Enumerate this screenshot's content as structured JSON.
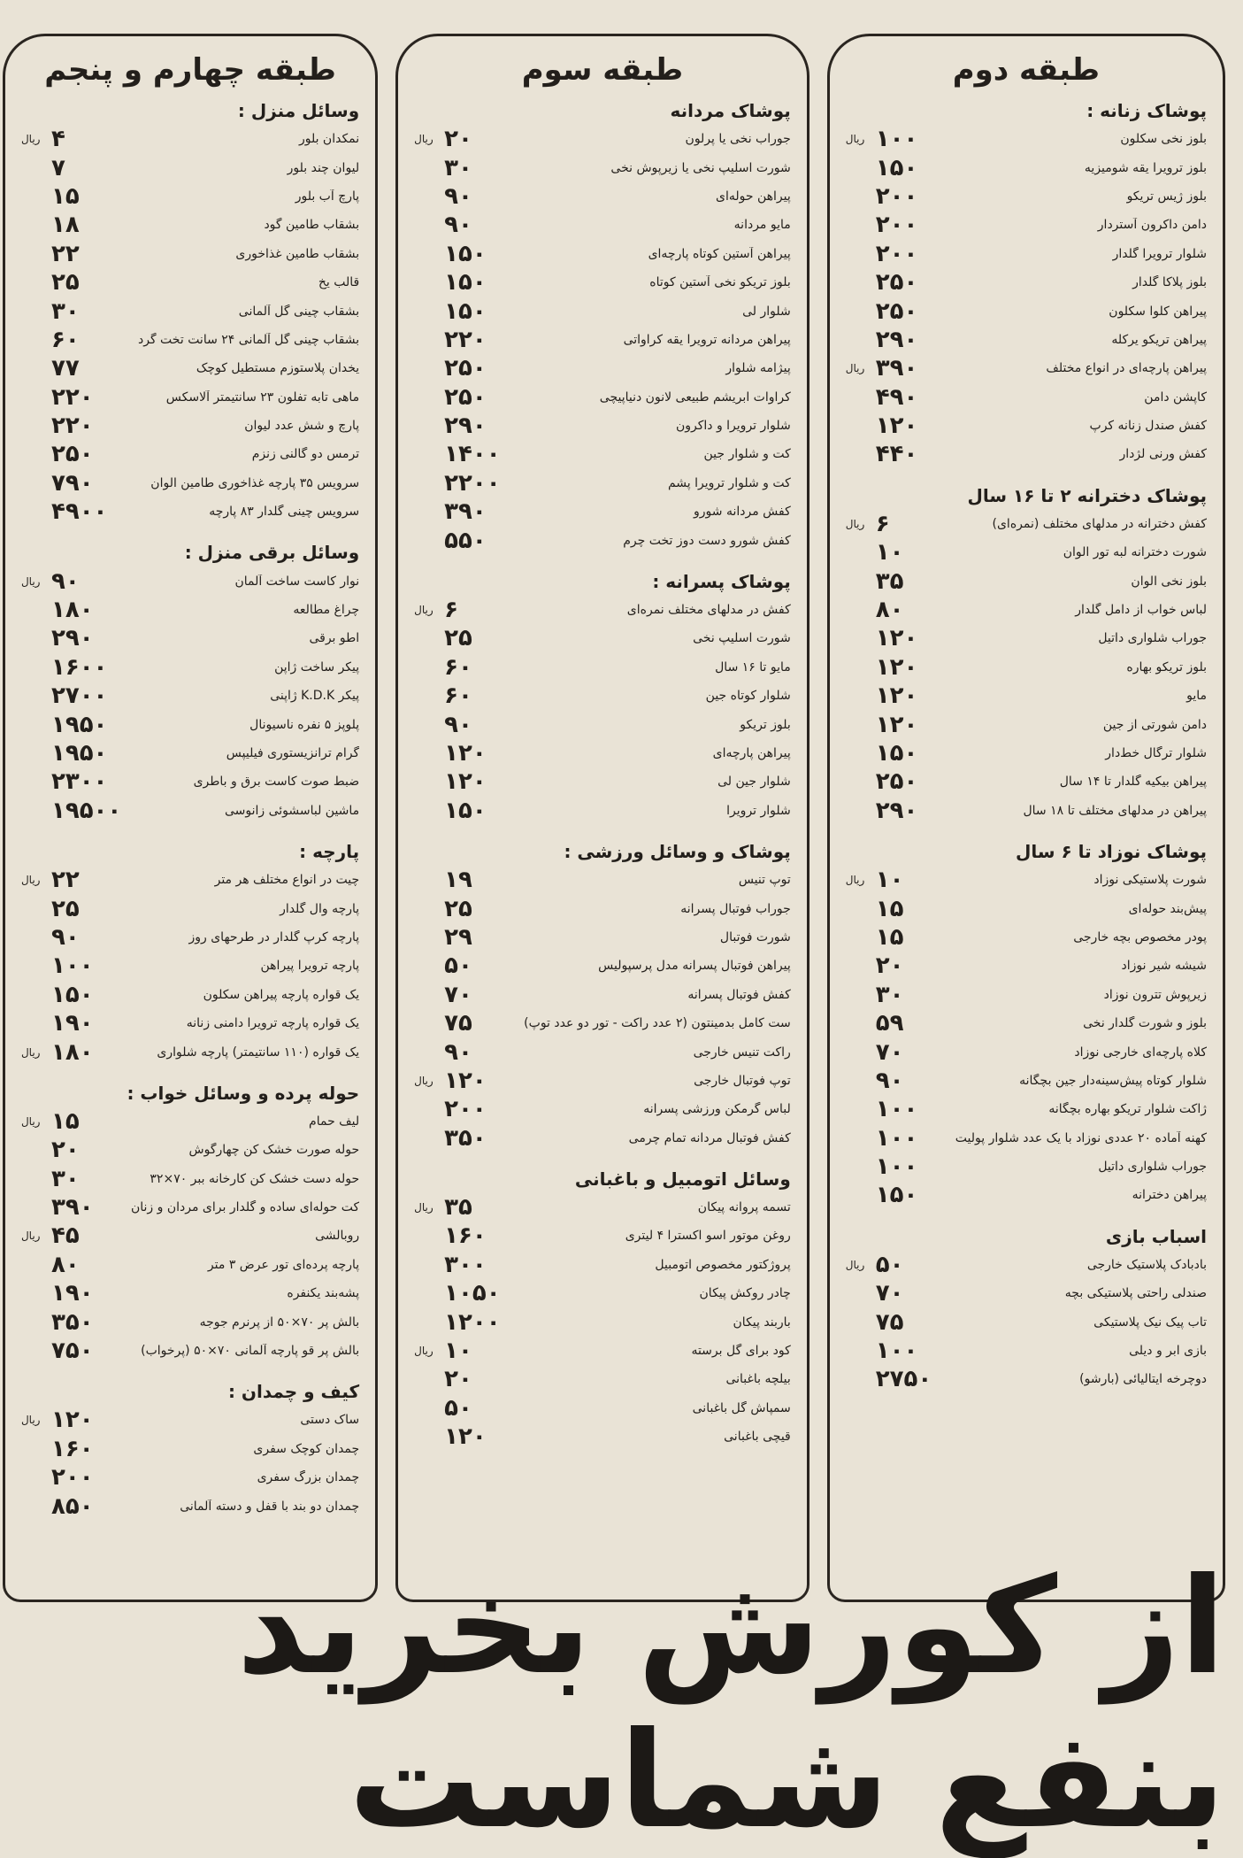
{
  "columns": [
    {
      "title": "طبقه دوم",
      "sections": [
        {
          "heading": "پوشاک زنانه :",
          "items": [
            {
              "name": "بلوز نخی سکلون",
              "price": "۱۰۰",
              "unit": "ریال"
            },
            {
              "name": "بلوز ترویرا یقه شومیزیه",
              "price": "۱۵۰"
            },
            {
              "name": "بلوز ژیس تریکو",
              "price": "۲۰۰"
            },
            {
              "name": "دامن داکرون آستردار",
              "price": "۲۰۰"
            },
            {
              "name": "شلوار ترویرا گلدار",
              "price": "۲۰۰"
            },
            {
              "name": "بلوز پلاکا گلدار",
              "price": "۲۵۰"
            },
            {
              "name": "پیراهن کلوا سکلون",
              "price": "۲۵۰"
            },
            {
              "name": "پیراهن تریکو یرکله",
              "price": "۲۹۰"
            },
            {
              "name": "پیراهن پارچه‌ای در انواع مختلف",
              "price": "۳۹۰",
              "unit": "ریال"
            },
            {
              "name": "کاپشن دامن",
              "price": "۴۹۰"
            },
            {
              "name": "کفش صندل زنانه کرپ",
              "price": "۱۲۰"
            },
            {
              "name": "کفش ورنی لژدار",
              "price": "۴۴۰"
            }
          ]
        },
        {
          "heading": "پوشاک دخترانه ۲ تا ۱۶ سال",
          "items": [
            {
              "name": "کفش دخترانه در مدلهای مختلف (نمره‌ای)",
              "price": "۶",
              "unit": "ریال"
            },
            {
              "name": "شورت دخترانه لبه تور الوان",
              "price": "۱۰"
            },
            {
              "name": "بلوز نخی الوان",
              "price": "۳۵"
            },
            {
              "name": "لباس خواب از دامل گلدار",
              "price": "۸۰"
            },
            {
              "name": "جوراب شلواری داتیل",
              "price": "۱۲۰"
            },
            {
              "name": "بلوز تریکو بهاره",
              "price": "۱۲۰"
            },
            {
              "name": "مایو",
              "price": "۱۲۰"
            },
            {
              "name": "دامن شورتی از جین",
              "price": "۱۲۰"
            },
            {
              "name": "شلوار ترگال خط‌دار",
              "price": "۱۵۰"
            },
            {
              "name": "پیراهن بیکیه گلدار تا ۱۴ سال",
              "price": "۲۵۰"
            },
            {
              "name": "پیراهن در مدلهای مختلف تا ۱۸ سال",
              "price": "۲۹۰"
            }
          ]
        },
        {
          "heading": "پوشاک نوزاد تا ۶ سال",
          "items": [
            {
              "name": "شورت پلاستیکی نوزاد",
              "price": "۱۰",
              "unit": "ریال"
            },
            {
              "name": "پیش‌بند حوله‌ای",
              "price": "۱۵"
            },
            {
              "name": "پودر مخصوص بچه خارجی",
              "price": "۱۵"
            },
            {
              "name": "شیشه شیر نوزاد",
              "price": "۲۰"
            },
            {
              "name": "زیرپوش تترون نوزاد",
              "price": "۳۰"
            },
            {
              "name": "بلوز و شورت گلدار نخی",
              "price": "۵۹"
            },
            {
              "name": "کلاه پارچه‌ای خارجی نوزاد",
              "price": "۷۰"
            },
            {
              "name": "شلوار کوتاه پیش‌سینه‌دار جین بچگانه",
              "price": "۹۰"
            },
            {
              "name": "ژاکت شلوار تریکو بهاره بچگانه",
              "price": "۱۰۰"
            },
            {
              "name": "کهنه آماده ۲۰ عددی نوزاد با یک عدد شلوار پولیت",
              "price": "۱۰۰"
            },
            {
              "name": "جوراب شلواری داتیل",
              "price": "۱۰۰"
            },
            {
              "name": "پیراهن دخترانه",
              "price": "۱۵۰"
            }
          ]
        },
        {
          "heading": "اسباب بازی",
          "items": [
            {
              "name": "بادبادک پلاستیک خارجی",
              "price": "۵۰",
              "unit": "ریال"
            },
            {
              "name": "صندلی راحتی پلاستیکی بچه",
              "price": "۷۰"
            },
            {
              "name": "تاب پیک نیک پلاستیکی",
              "price": "۷۵"
            },
            {
              "name": "بازی ابر و دیلی",
              "price": "۱۰۰"
            },
            {
              "name": "دوچرخه ایتالیائی (بارشو)",
              "price": "۲۷۵۰"
            }
          ]
        }
      ]
    },
    {
      "title": "طبقه سوم",
      "sections": [
        {
          "heading": "پوشاک مردانه",
          "items": [
            {
              "name": "جوراب نخی یا پرلون",
              "price": "۲۰",
              "unit": "ریال"
            },
            {
              "name": "شورت اسلیپ نخی یا زیرپوش نخی",
              "price": "۳۰"
            },
            {
              "name": "پیراهن حوله‌ای",
              "price": "۹۰"
            },
            {
              "name": "مایو مردانه",
              "price": "۹۰"
            },
            {
              "name": "پیراهن آستین کوتاه پارچه‌ای",
              "price": "۱۵۰"
            },
            {
              "name": "بلوز تریکو نخی آستین کوتاه",
              "price": "۱۵۰"
            },
            {
              "name": "شلوار لی",
              "price": "۱۵۰"
            },
            {
              "name": "پیراهن مردانه ترویرا یقه کراواتی",
              "price": "۲۲۰"
            },
            {
              "name": "پیژامه شلوار",
              "price": "۲۵۰"
            },
            {
              "name": "کراوات ابریشم طبیعی لانون دنیاپیچی",
              "price": "۲۵۰"
            },
            {
              "name": "شلوار ترویرا و داکرون",
              "price": "۲۹۰"
            },
            {
              "name": "کت و شلوار جین",
              "price": "۱۴۰۰"
            },
            {
              "name": "کت و شلوار ترویرا پشم",
              "price": "۲۲۰۰"
            },
            {
              "name": "کفش مردانه شورو",
              "price": "۳۹۰"
            },
            {
              "name": "کفش شورو دست دوز تخت چرم",
              "price": "۵۵۰"
            }
          ]
        },
        {
          "heading": "پوشاک پسرانه :",
          "items": [
            {
              "name": "کفش در مدلهای مختلف نمره‌ای",
              "price": "۶",
              "unit": "ریال"
            },
            {
              "name": "شورت اسلیپ نخی",
              "price": "۲۵"
            },
            {
              "name": "مایو تا ۱۶ سال",
              "price": "۶۰"
            },
            {
              "name": "شلوار کوتاه جین",
              "price": "۶۰"
            },
            {
              "name": "بلوز تریکو",
              "price": "۹۰"
            },
            {
              "name": "پیراهن پارچه‌ای",
              "price": "۱۲۰"
            },
            {
              "name": "شلوار جین لی",
              "price": "۱۲۰"
            },
            {
              "name": "شلوار ترویرا",
              "price": "۱۵۰"
            }
          ]
        },
        {
          "heading": "پوشاک و وسائل ورزشی :",
          "items": [
            {
              "name": "توپ تنیس",
              "price": "۱۹"
            },
            {
              "name": "جوراب فوتبال پسرانه",
              "price": "۲۵"
            },
            {
              "name": "شورت فوتبال",
              "price": "۲۹"
            },
            {
              "name": "پیراهن فوتبال پسرانه مدل پرسپولیس",
              "price": "۵۰"
            },
            {
              "name": "کفش فوتبال پسرانه",
              "price": "۷۰"
            },
            {
              "name": "ست کامل بدمینتون (۲ عدد راکت - تور دو عدد توپ)",
              "price": "۷۵"
            },
            {
              "name": "راکت تنیس خارجی",
              "price": "۹۰"
            },
            {
              "name": "توپ فوتبال خارجی",
              "price": "۱۲۰",
              "unit": "ریال"
            },
            {
              "name": "لباس گرمکن ورزشی پسرانه",
              "price": "۲۰۰"
            },
            {
              "name": "کفش فوتبال مردانه تمام چرمی",
              "price": "۳۵۰"
            }
          ]
        },
        {
          "heading": "وسائل اتومبیل و باغبانی",
          "items": [
            {
              "name": "تسمه پروانه پیکان",
              "price": "۳۵",
              "unit": "ریال"
            },
            {
              "name": "روغن موتور اسو اکسترا ۴ لیتری",
              "price": "۱۶۰"
            },
            {
              "name": "پروژکتور مخصوص اتومبیل",
              "price": "۳۰۰"
            },
            {
              "name": "چادر روکش پیکان",
              "price": "۱۰۵۰"
            },
            {
              "name": "باربند پیکان",
              "price": "۱۲۰۰"
            },
            {
              "name": "کود برای گل برسته",
              "price": "۱۰",
              "unit": "ریال"
            },
            {
              "name": "بیلچه باغبانی",
              "price": "۲۰"
            },
            {
              "name": "سمپاش گل باغبانی",
              "price": "۵۰"
            },
            {
              "name": "قیچی باغبانی",
              "price": "۱۲۰"
            }
          ]
        }
      ]
    },
    {
      "title": "طبقه چهارم و پنجم",
      "sections": [
        {
          "heading": "وسائل منزل :",
          "items": [
            {
              "name": "نمکدان بلور",
              "price": "۴",
              "unit": "ریال"
            },
            {
              "name": "لیوان چند بلور",
              "price": "۷"
            },
            {
              "name": "پارچ آب بلور",
              "price": "۱۵"
            },
            {
              "name": "بشقاب طامین گود",
              "price": "۱۸"
            },
            {
              "name": "بشقاب طامین غذاخوری",
              "price": "۲۲"
            },
            {
              "name": "قالب یخ",
              "price": "۲۵"
            },
            {
              "name": "بشقاب چینی گل آلمانی",
              "price": "۳۰"
            },
            {
              "name": "بشقاب چینی گل آلمانی ۲۴ سانت تخت گرد",
              "price": "۶۰"
            },
            {
              "name": "یخدان پلاستوزم مستطیل کوچک",
              "price": "۷۷"
            },
            {
              "name": "ماهی تابه تفلون ۲۳ سانتیمتر آلاسکس",
              "price": "۲۲۰"
            },
            {
              "name": "پارچ و شش عدد لیوان",
              "price": "۲۲۰"
            },
            {
              "name": "ترمس دو گالنی زنزم",
              "price": "۲۵۰"
            },
            {
              "name": "سرویس ۳۵ پارچه غذاخوری طامین الوان",
              "price": "۷۹۰"
            },
            {
              "name": "سرویس چینی گلدار ۸۳ پارچه",
              "price": "۴۹۰۰"
            }
          ]
        },
        {
          "heading": "وسائل برقی منزل :",
          "items": [
            {
              "name": "نوار کاست ساخت آلمان",
              "price": "۹۰",
              "unit": "ریال"
            },
            {
              "name": "چراغ مطالعه",
              "price": "۱۸۰"
            },
            {
              "name": "اطو برقی",
              "price": "۲۹۰"
            },
            {
              "name": "پیکر ساخت ژاپن",
              "price": "۱۶۰۰"
            },
            {
              "name": "پیکر K.D.K ژاپنی",
              "price": "۲۷۰۰"
            },
            {
              "name": "پلوپز ۵ نفره ناسیونال",
              "price": "۱۹۵۰"
            },
            {
              "name": "گرام ترانزیستوری فیلیپس",
              "price": "۱۹۵۰"
            },
            {
              "name": "ضبط صوت کاست برق و باطری",
              "price": "۲۳۰۰"
            },
            {
              "name": "ماشین لباسشوئی زانوسی",
              "price": "۱۹۵۰۰"
            }
          ]
        },
        {
          "heading": "پارچه :",
          "items": [
            {
              "name": "چیت در انواع مختلف هر متر",
              "price": "۲۲",
              "unit": "ریال"
            },
            {
              "name": "پارچه وال گلدار",
              "price": "۲۵"
            },
            {
              "name": "پارچه کرپ گلدار در طرحهای روز",
              "price": "۹۰"
            },
            {
              "name": "پارچه ترویرا پیراهن",
              "price": "۱۰۰"
            },
            {
              "name": "یک قواره پارچه پیراهن سکلون",
              "price": "۱۵۰"
            },
            {
              "name": "یک قواره پارچه ترویرا دامنی زنانه",
              "price": "۱۹۰"
            },
            {
              "name": "یک قواره (۱۱۰ سانتیمتر) پارچه شلواری",
              "price": "۱۸۰",
              "unit": "ریال"
            }
          ]
        },
        {
          "heading": "حوله پرده و وسائل خواب :",
          "items": [
            {
              "name": "لیف حمام",
              "price": "۱۵",
              "unit": "ریال"
            },
            {
              "name": "حوله صورت خشک کن چهارگوش",
              "price": "۲۰"
            },
            {
              "name": "حوله دست خشک کن کارخانه ببر ۷۰×۳۲",
              "price": "۳۰"
            },
            {
              "name": "کت حوله‌ای ساده و گلدار برای مردان و زنان",
              "price": "۳۹۰"
            },
            {
              "name": "روبالشی",
              "price": "۴۵",
              "unit": "ریال"
            },
            {
              "name": "پارچه پرده‌ای تور عرض ۳ متر",
              "price": "۸۰"
            },
            {
              "name": "پشه‌بند یکنفره",
              "price": "۱۹۰"
            },
            {
              "name": "بالش پر ۷۰×۵۰ از پرنرم جوجه",
              "price": "۳۵۰"
            },
            {
              "name": "بالش پر قو پارچه آلمانی ۷۰×۵۰ (پرخواب)",
              "price": "۷۵۰"
            }
          ]
        },
        {
          "heading": "کیف و چمدان :",
          "items": [
            {
              "name": "ساک دستی",
              "price": "۱۲۰",
              "unit": "ریال"
            },
            {
              "name": "چمدان کوچک سفری",
              "price": "۱۶۰"
            },
            {
              "name": "چمدان بزرگ سفری",
              "price": "۲۰۰"
            },
            {
              "name": "چمدان دو بند با قفل و دسته آلمانی",
              "price": "۸۵۰"
            }
          ]
        }
      ]
    }
  ],
  "footer": {
    "slogan": "از کورش بخرید بنفع شماست"
  }
}
